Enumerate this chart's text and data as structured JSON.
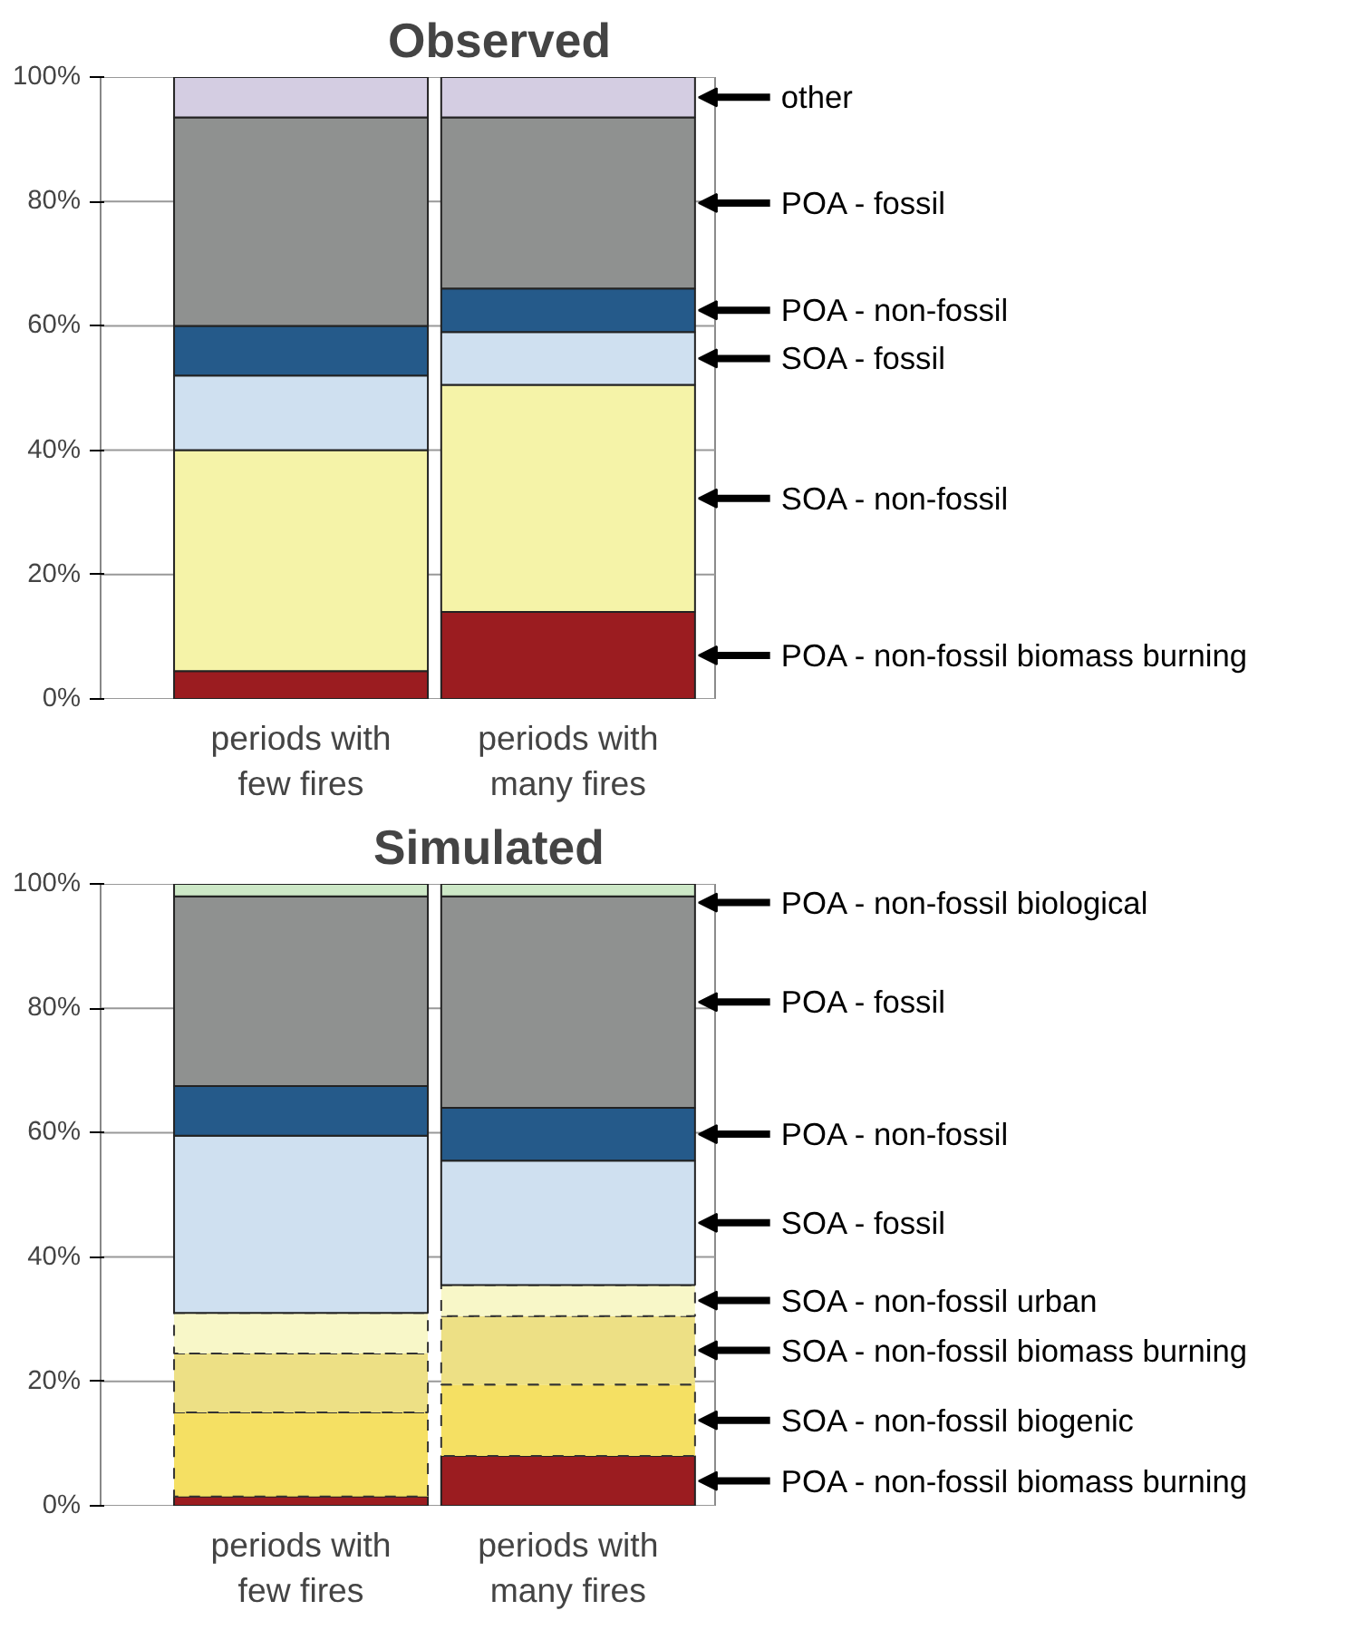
{
  "chart_data": [
    {
      "type": "bar",
      "title": "Observed",
      "stacked": true,
      "categories": [
        "periods with few fires",
        "periods with many fires"
      ],
      "ylim": [
        0,
        100
      ],
      "yticks": [
        {
          "value": 0,
          "label": "0%"
        },
        {
          "value": 20,
          "label": "20%"
        },
        {
          "value": 40,
          "label": "40%"
        },
        {
          "value": 60,
          "label": "60%"
        },
        {
          "value": 80,
          "label": "80%"
        },
        {
          "value": 100,
          "label": "100%"
        }
      ],
      "grid": "y",
      "series": [
        {
          "name": "POA - non-fossil biomass burning",
          "color": "#9b1c20",
          "values": [
            4.5,
            14
          ]
        },
        {
          "name": "SOA - non-fossil",
          "color": "#f5f3a8",
          "values": [
            35.5,
            36.5
          ]
        },
        {
          "name": "SOA - fossil",
          "color": "#cfe0f0",
          "values": [
            12,
            8.5
          ]
        },
        {
          "name": "POA - non-fossil",
          "color": "#255a8a",
          "values": [
            8,
            7
          ]
        },
        {
          "name": "POA - fossil",
          "color": "#8f9190",
          "values": [
            33.5,
            27.5
          ]
        },
        {
          "name": "other",
          "color": "#d4cde2",
          "values": [
            6.5,
            6.5
          ]
        }
      ]
    },
    {
      "type": "bar",
      "title": "Simulated",
      "stacked": true,
      "categories": [
        "periods with few fires",
        "periods with many fires"
      ],
      "ylim": [
        0,
        100
      ],
      "yticks": [
        {
          "value": 0,
          "label": "0%"
        },
        {
          "value": 20,
          "label": "20%"
        },
        {
          "value": 40,
          "label": "40%"
        },
        {
          "value": 60,
          "label": "60%"
        },
        {
          "value": 80,
          "label": "80%"
        },
        {
          "value": 100,
          "label": "100%"
        }
      ],
      "grid": "y",
      "series": [
        {
          "name": "POA - non-fossil biomass burning",
          "color": "#9b1c20",
          "values": [
            1.5,
            8
          ]
        },
        {
          "name": "SOA - non-fossil biogenic",
          "color": "#f5e063",
          "values": [
            13.5,
            11.5
          ],
          "line_style": "dashed"
        },
        {
          "name": "SOA - non-fossil biomass burning",
          "color": "#ede085",
          "values": [
            9.5,
            11
          ],
          "line_style": "dashed"
        },
        {
          "name": "SOA - non-fossil urban",
          "color": "#f8f7c8",
          "values": [
            6.5,
            5
          ],
          "line_style": "dashed"
        },
        {
          "name": "SOA - fossil",
          "color": "#cfe0f0",
          "values": [
            28.5,
            20
          ]
        },
        {
          "name": "POA - non-fossil",
          "color": "#255a8a",
          "values": [
            8,
            8.5
          ]
        },
        {
          "name": "POA - fossil",
          "color": "#8f9190",
          "values": [
            30.5,
            34
          ]
        },
        {
          "name": "POA - non-fossil biological",
          "color": "#cde8c7",
          "values": [
            2,
            2
          ]
        }
      ]
    }
  ]
}
